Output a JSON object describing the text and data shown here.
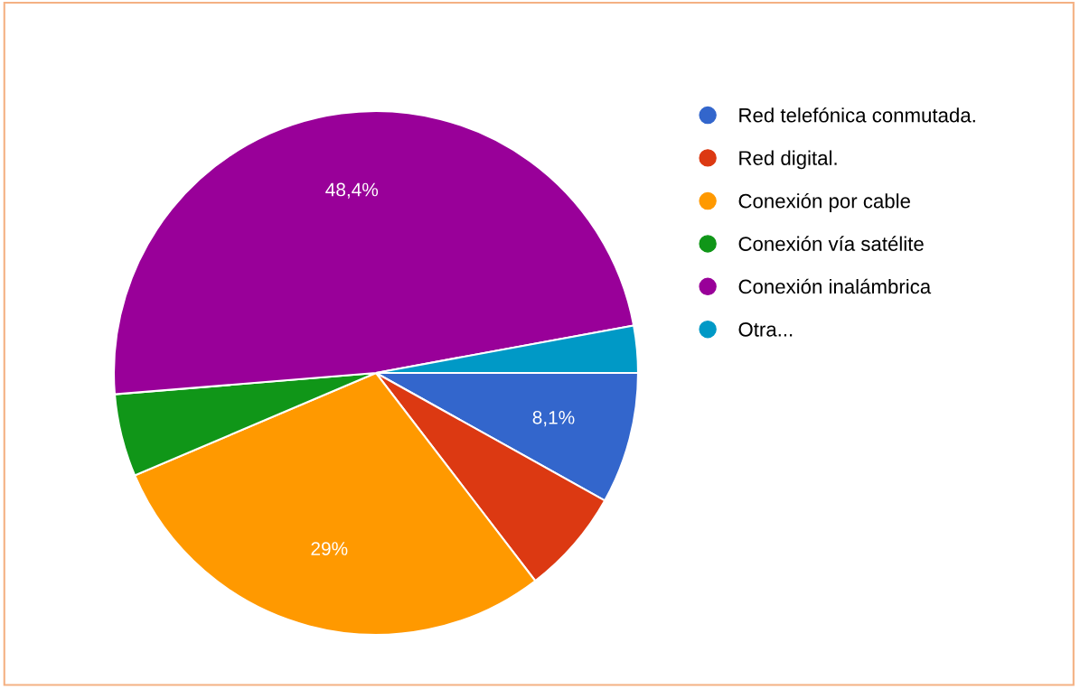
{
  "chart_data": {
    "type": "pie",
    "categories": [
      "Red telefónica conmutada.",
      "Red digital.",
      "Conexión por cable",
      "Conexión vía satélite",
      "Conexión inalámbrica",
      "Otra..."
    ],
    "values": [
      8.1,
      6.5,
      29,
      5.1,
      48.4,
      2.9
    ],
    "colors": [
      "#3366cc",
      "#dc3912",
      "#ff9900",
      "#109618",
      "#990099",
      "#0099c6"
    ],
    "value_labels": [
      "8,1%",
      null,
      "29%",
      null,
      "48,4%",
      null
    ],
    "legend": "right"
  }
}
